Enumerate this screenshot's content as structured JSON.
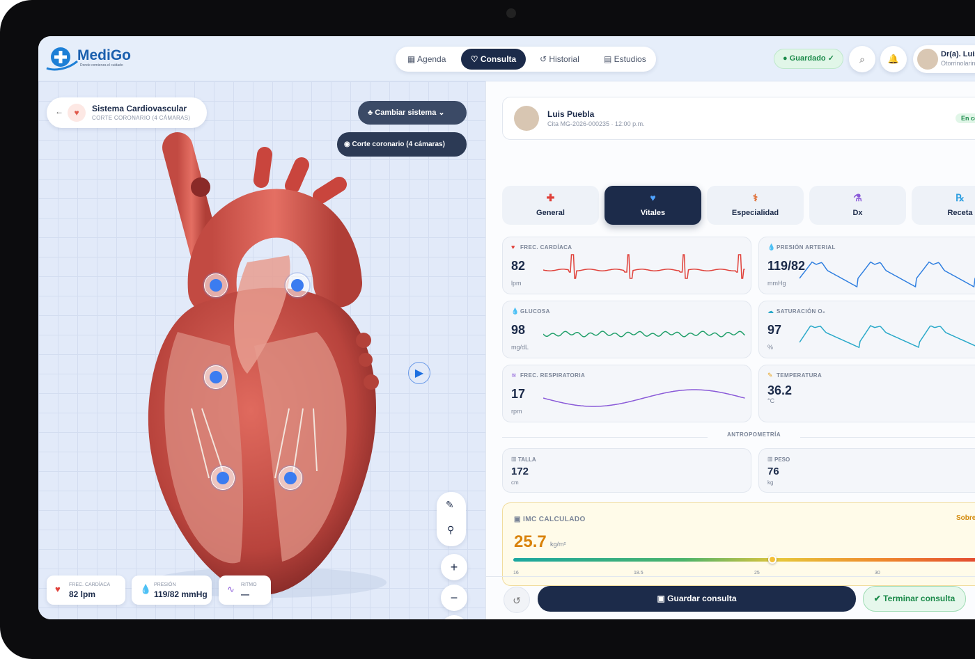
{
  "brand": {
    "name": "MediGo",
    "tagline": "Donde comienza el cuidado"
  },
  "nav": [
    "Agenda",
    "Consulta",
    "Historial",
    "Estudios"
  ],
  "status": "Guardado ✓",
  "user": {
    "name": "Dr(a). Luis",
    "role": "Otorrinolaringología"
  },
  "viewer": {
    "system": "Sistema Cardiovascular",
    "view": "CORTE CORONARIO (4 CÁMARAS)",
    "change_button": "Cambiar sistema",
    "view_button": "Corte coronario (4 cámaras)",
    "stats": [
      {
        "label": "FREC. CARDÍACA",
        "value": "82 lpm"
      },
      {
        "label": "PRESIÓN",
        "value": "119/82 mmHg"
      },
      {
        "label": "RITMO",
        "value": "—"
      }
    ]
  },
  "patient": {
    "name": "Luis Puebla",
    "appointment": "Cita MG-2026-000235 · 12:00 p.m.",
    "status": "En consulta"
  },
  "tabs": [
    "General",
    "Vitales",
    "Especialidad",
    "Dx",
    "Receta"
  ],
  "vitals": [
    {
      "label": "FREC. CARDÍACA",
      "value": 82,
      "unit": "lpm"
    },
    {
      "label": "PRESIÓN ARTERIAL",
      "value": "119/82",
      "unit": "mmHg"
    },
    {
      "label": "GLUCOSA",
      "value": 98,
      "unit": "mg/dL"
    },
    {
      "label": "SATURACIÓN O₂",
      "value": 97,
      "unit": "%"
    },
    {
      "label": "FREC. RESPIRATORIA",
      "value": 17,
      "unit": "rpm"
    },
    {
      "label": "TEMPERATURA",
      "value": 36.2,
      "unit": "°C"
    }
  ],
  "anthropometry": {
    "title": "ANTROPOMETRÍA",
    "items": [
      {
        "label": "TALLA",
        "value": 172,
        "unit": "cm"
      },
      {
        "label": "PESO",
        "value": 76,
        "unit": "kg"
      }
    ]
  },
  "bmi": {
    "title": "IMC CALCULADO",
    "value": 25.7,
    "unit": "kg/m²",
    "category": "Sobrepeso",
    "scale": [
      16,
      18.5,
      25,
      30
    ]
  },
  "actions": {
    "save": "Guardar consulta",
    "finish": "Terminar consulta"
  }
}
